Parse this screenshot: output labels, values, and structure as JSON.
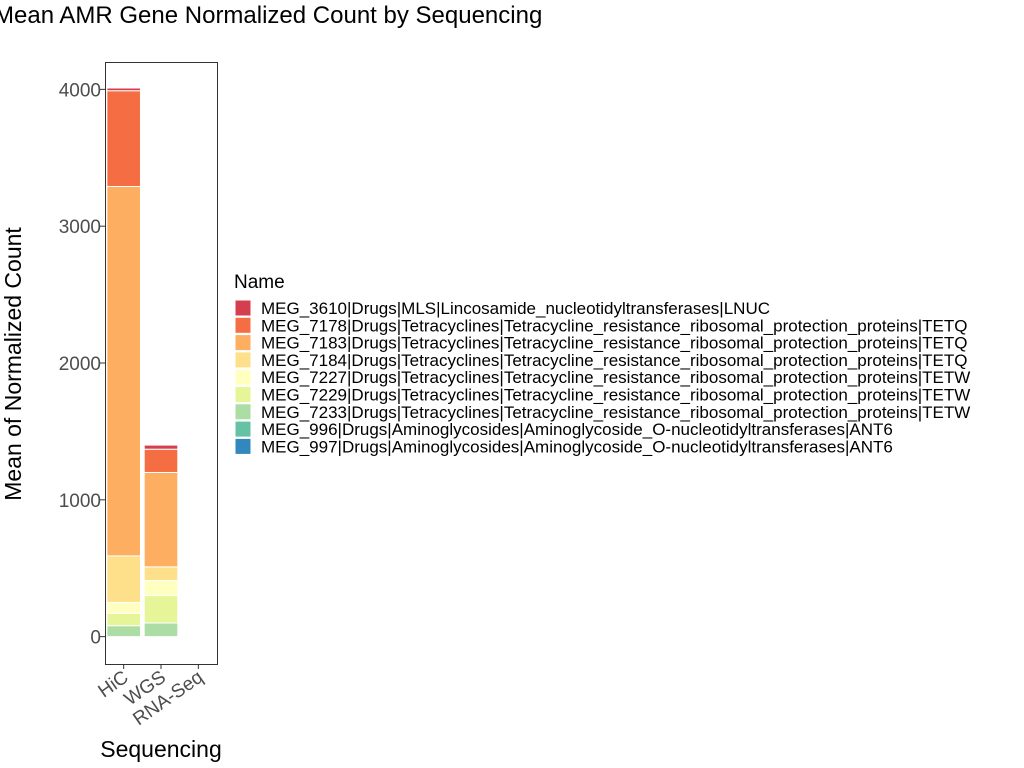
{
  "chart_data": {
    "type": "bar",
    "stacked": true,
    "title": "Mean AMR Gene Normalized Count by Sequencing",
    "xlabel": "Sequencing",
    "ylabel": "Mean of Normalized Count",
    "categories": [
      "HiC",
      "WGS",
      "RNA-Seq"
    ],
    "ylim": [
      -200,
      4200
    ],
    "yticks": [
      0,
      1000,
      2000,
      3000,
      4000
    ],
    "grid": false,
    "legend": {
      "title": "Name",
      "position": "right"
    },
    "series": [
      {
        "name": "MEG_997|Drugs|Aminoglycosides|Aminoglycoside_O-nucleotidyltransferases|ANT6",
        "color": "#3288BD",
        "values": [
          0,
          0,
          0
        ]
      },
      {
        "name": "MEG_996|Drugs|Aminoglycosides|Aminoglycoside_O-nucleotidyltransferases|ANT6",
        "color": "#66C2A5",
        "values": [
          0,
          0,
          0
        ]
      },
      {
        "name": "MEG_7233|Drugs|Tetracyclines|Tetracycline_resistance_ribosomal_protection_proteins|TETW",
        "color": "#ABDDA4",
        "values": [
          80,
          100,
          0
        ]
      },
      {
        "name": "MEG_7229|Drugs|Tetracyclines|Tetracycline_resistance_ribosomal_protection_proteins|TETW",
        "color": "#E6F598",
        "values": [
          90,
          200,
          0
        ]
      },
      {
        "name": "MEG_7227|Drugs|Tetracyclines|Tetracycline_resistance_ribosomal_protection_proteins|TETW",
        "color": "#FFFFBF",
        "values": [
          80,
          110,
          0
        ]
      },
      {
        "name": "MEG_7184|Drugs|Tetracyclines|Tetracycline_resistance_ribosomal_protection_proteins|TETQ",
        "color": "#FEE08B",
        "values": [
          340,
          100,
          0
        ]
      },
      {
        "name": "MEG_7183|Drugs|Tetracyclines|Tetracycline_resistance_ribosomal_protection_proteins|TETQ",
        "color": "#FDAE61",
        "values": [
          2700,
          690,
          0
        ]
      },
      {
        "name": "MEG_7178|Drugs|Tetracyclines|Tetracycline_resistance_ribosomal_protection_proteins|TETQ",
        "color": "#F46D43",
        "values": [
          700,
          170,
          0
        ]
      },
      {
        "name": "MEG_3610|Drugs|MLS|Lincosamide_nucleotidyltransferases|LNUC",
        "color": "#D53E4F",
        "values": [
          20,
          30,
          0
        ]
      }
    ]
  }
}
